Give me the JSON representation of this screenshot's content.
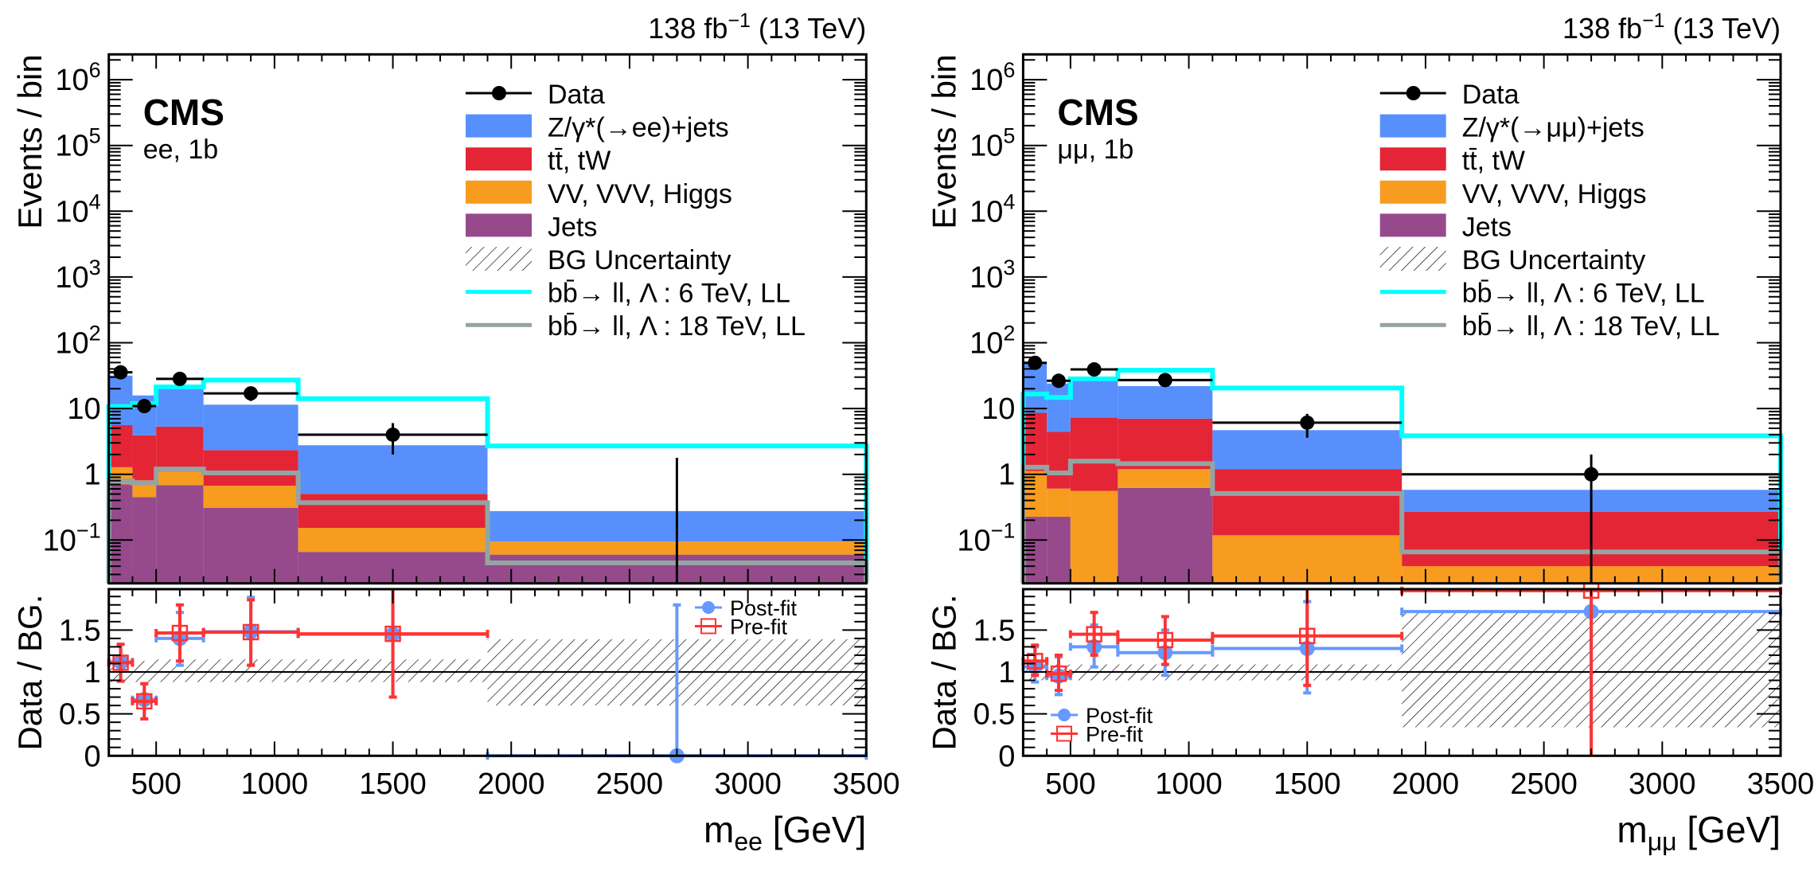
{
  "colors": {
    "dy": "#5790fc",
    "tt": "#e42536",
    "vv": "#f89c20",
    "jets": "#964a8b",
    "sig6": "#00ffff",
    "sig18": "#94a4a2",
    "data": "#000000",
    "postfit": "#6699ff",
    "prefit": "#ff3333"
  },
  "chart_data": [
    {
      "type": "bar",
      "subtype": "stacked-histogram-with-ratio",
      "experiment": "CMS",
      "channel": "ee, 1b",
      "lumi": {
        "pre": "138 fb",
        "sup": "−1",
        "post": " (13 TeV)"
      },
      "ylabel": "Events / bin",
      "ratio_ylabel": "Data / BG.",
      "xlabel": {
        "main": "m",
        "sub": "ee",
        "unit": " [GeV]"
      },
      "xlim": [
        300,
        3500
      ],
      "ylim": [
        0.022,
        2100000
      ],
      "yscale": "log",
      "ratio_ylim": [
        0,
        2
      ],
      "bin_edges": [
        300,
        400,
        500,
        700,
        1100,
        1900,
        3500
      ],
      "xticks": [
        "500",
        "1000",
        "1500",
        "2000",
        "2500",
        "3000",
        "3500"
      ],
      "xtick_values": [
        500,
        1000,
        1500,
        2000,
        2500,
        3000,
        3500
      ],
      "yticks": [
        "10^-1",
        "1",
        "10",
        "10^2",
        "10^3",
        "10^4",
        "10^5",
        "10^6"
      ],
      "ratio_yticks": [
        "0",
        "0.5",
        "1",
        "1.5"
      ],
      "legend_position": "top-right",
      "legend": [
        {
          "key": "data",
          "label": "Data"
        },
        {
          "key": "dy",
          "label": "Z/γ*(→ee)+jets"
        },
        {
          "key": "tt",
          "label": "tt̄, tW"
        },
        {
          "key": "vv",
          "label": "VV, VVV, Higgs"
        },
        {
          "key": "jets",
          "label": "Jets"
        },
        {
          "key": "unc",
          "label": "BG Uncertainty"
        },
        {
          "key": "sig6",
          "label": "bb̄→ ll,   Λ : 6 TeV, LL"
        },
        {
          "key": "sig18",
          "label": "bb̄→ ll,   Λ : 18 TeV, LL"
        }
      ],
      "stack": {
        "jets": [
          0.7,
          0.45,
          0.68,
          0.31,
          0.066,
          0.06
        ],
        "vv": [
          0.58,
          0.36,
          0.42,
          0.36,
          0.087,
          0.035
        ],
        "tt": [
          4.3,
          3.1,
          4.2,
          1.66,
          0.35,
          0
        ],
        "dy": [
          26.1,
          11.9,
          14.7,
          9.1,
          2.26,
          0.18
        ]
      },
      "data": {
        "values": [
          35.5,
          10.9,
          28.2,
          17,
          4.0,
          0
        ],
        "err": [
          [
            30,
            41
          ],
          [
            8.6,
            14
          ],
          [
            23,
            33.5
          ],
          [
            13,
            21
          ],
          [
            2.0,
            6.0
          ],
          [
            0,
            1.78
          ]
        ]
      },
      "signal_6TeV": [
        10.7,
        11.9,
        21.3,
        27.1,
        14.1,
        2.7
      ],
      "signal_18TeV": [
        0.79,
        0.74,
        1.2,
        1.05,
        0.37,
        0.045
      ],
      "ratio": {
        "legend_position": "top-right",
        "legend": [
          {
            "key": "postfit",
            "label": "Post-fit"
          },
          {
            "key": "prefit",
            "label": "Pre-fit"
          }
        ],
        "postfit": [
          1.12,
          0.67,
          1.4,
          1.48,
          1.45,
          0
        ],
        "postfit_err": [
          [
            0.89,
            1.33
          ],
          [
            0.44,
            0.86
          ],
          [
            1.08,
            1.71
          ],
          [
            1.08,
            1.89
          ],
          [
            0.7,
            2.0
          ],
          [
            0,
            1.8
          ]
        ],
        "prefit": [
          1.11,
          0.65,
          1.465,
          1.475,
          1.455,
          null
        ],
        "prefit_err": [
          [
            0.89,
            1.33
          ],
          [
            0.44,
            0.86
          ],
          [
            1.13,
            1.8
          ],
          [
            1.08,
            1.86
          ],
          [
            0.7,
            2.0
          ],
          null
        ],
        "band": [
          [
            0.88,
            1.13
          ],
          [
            0.88,
            1.13
          ],
          [
            0.88,
            1.15
          ],
          [
            0.88,
            1.15
          ],
          [
            0.88,
            1.15
          ],
          [
            0.6,
            1.39
          ]
        ]
      }
    },
    {
      "type": "bar",
      "subtype": "stacked-histogram-with-ratio",
      "experiment": "CMS",
      "channel": "μμ, 1b",
      "lumi": {
        "pre": "138 fb",
        "sup": "−1",
        "post": " (13 TeV)"
      },
      "ylabel": "Events / bin",
      "ratio_ylabel": "Data / BG.",
      "xlabel": {
        "main": "m",
        "sub": "μμ",
        "unit": " [GeV]"
      },
      "xlim": [
        300,
        3500
      ],
      "ylim": [
        0.022,
        2100000
      ],
      "yscale": "log",
      "ratio_ylim": [
        0,
        2
      ],
      "bin_edges": [
        300,
        400,
        500,
        700,
        1100,
        1900,
        3500
      ],
      "xticks": [
        "500",
        "1000",
        "1500",
        "2000",
        "2500",
        "3000",
        "3500"
      ],
      "xtick_values": [
        500,
        1000,
        1500,
        2000,
        2500,
        3000,
        3500
      ],
      "yticks": [
        "10^-1",
        "1",
        "10",
        "10^2",
        "10^3",
        "10^4",
        "10^5",
        "10^6"
      ],
      "ratio_yticks": [
        "0",
        "0.5",
        "1",
        "1.5"
      ],
      "legend_position": "top-right",
      "legend": [
        {
          "key": "data",
          "label": "Data"
        },
        {
          "key": "dy",
          "label": "Z/γ*(→μμ)+jets"
        },
        {
          "key": "tt",
          "label": "tt̄, tW"
        },
        {
          "key": "vv",
          "label": "VV, VVV, Higgs"
        },
        {
          "key": "jets",
          "label": "Jets"
        },
        {
          "key": "unc",
          "label": "BG Uncertainty"
        },
        {
          "key": "sig6",
          "label": "bb̄→ ll,   Λ : 6 TeV, LL"
        },
        {
          "key": "sig18",
          "label": "bb̄→ ll,   Λ : 18 TeV, LL"
        }
      ],
      "stack": {
        "jets": [
          0.226,
          0.226,
          0,
          0.62,
          0,
          0
        ],
        "vv": [
          0.89,
          0.38,
          0.56,
          0.58,
          0.118,
          0.04
        ],
        "tt": [
          7.5,
          3.8,
          6.7,
          5.8,
          1.07,
          0.23
        ],
        "dy": [
          39.4,
          19.6,
          19.1,
          14.9,
          3.5,
          0.31
        ]
      },
      "data": {
        "values": [
          49.5,
          26.4,
          39.3,
          27.1,
          6.1,
          1.0
        ],
        "err": [
          [
            43,
            57
          ],
          [
            21.5,
            32
          ],
          [
            33.5,
            45.5
          ],
          [
            22.5,
            32.5
          ],
          [
            3.6,
            8.3
          ],
          [
            0,
            2.0
          ]
        ]
      },
      "signal_6TeV": [
        16.6,
        14.7,
        28.2,
        38.2,
        20.5,
        3.85
      ],
      "signal_18TeV": [
        1.28,
        1.05,
        1.58,
        1.45,
        0.51,
        0.066
      ],
      "ratio": {
        "legend_position": "bottom-left",
        "legend": [
          {
            "key": "postfit",
            "label": "Post-fit"
          },
          {
            "key": "prefit",
            "label": "Pre-fit"
          }
        ],
        "postfit": [
          1.06,
          0.95,
          1.3,
          1.23,
          1.28,
          1.72
        ],
        "postfit_err": [
          [
            0.88,
            1.3
          ],
          [
            0.73,
            1.18
          ],
          [
            1.06,
            1.56
          ],
          [
            0.96,
            1.5
          ],
          [
            0.75,
            1.84
          ],
          [
            0,
            2.0
          ]
        ],
        "prefit": [
          1.13,
          0.98,
          1.45,
          1.38,
          1.43,
          1.97
        ],
        "prefit_err": [
          [
            0.96,
            1.32
          ],
          [
            0.78,
            1.2
          ],
          [
            1.2,
            1.71
          ],
          [
            1.09,
            1.66
          ],
          [
            0.84,
            2.0
          ],
          [
            0,
            2.0
          ]
        ],
        "band": [
          [
            0.9,
            1.09
          ],
          [
            0.9,
            1.09
          ],
          [
            0.9,
            1.09
          ],
          [
            0.9,
            1.09
          ],
          [
            0.9,
            1.09
          ],
          [
            0.34,
            1.71
          ]
        ]
      }
    }
  ]
}
